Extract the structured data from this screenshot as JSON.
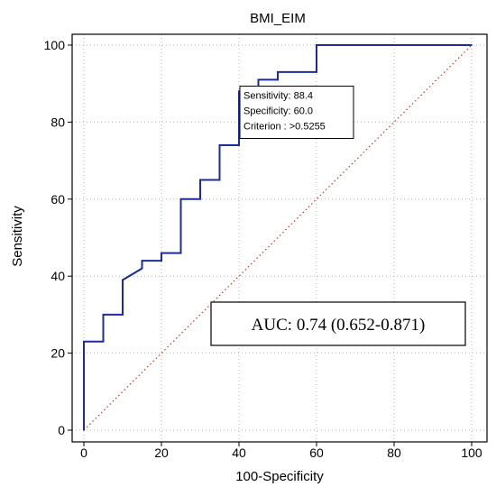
{
  "chart_data": {
    "type": "line",
    "title": "BMI_EIM",
    "xlabel": "100-Specificity",
    "ylabel": "Sensitivity",
    "xlim": [
      0,
      100
    ],
    "ylim": [
      0,
      100
    ],
    "xticks": [
      0,
      20,
      40,
      60,
      80,
      100
    ],
    "yticks": [
      0,
      20,
      40,
      60,
      80,
      100
    ],
    "grid": true,
    "roc_curve": {
      "x": [
        0,
        0,
        0,
        5,
        5,
        10,
        10,
        15,
        15,
        20,
        20,
        25,
        25,
        30,
        30,
        35,
        35,
        40,
        40,
        45,
        45,
        50,
        50,
        60,
        60,
        100
      ],
      "y": [
        0,
        23,
        23,
        23,
        30,
        30,
        39,
        42,
        44,
        44,
        46,
        46,
        60,
        60,
        65,
        65,
        74,
        74,
        88,
        88,
        91,
        91,
        93,
        93,
        100,
        100
      ],
      "color": "#1f2b9b"
    },
    "reference_line": {
      "x": [
        0,
        100
      ],
      "y": [
        0,
        100
      ],
      "color": "#c0392b"
    },
    "criterion_box": {
      "x": 40,
      "y": 88.4,
      "lines": [
        "Sensitivity: 88.4",
        "Specificity: 60.0",
        "Criterion : >0.5255"
      ]
    },
    "auc_label": "AUC: 0.74 (0.652-0.871)"
  }
}
